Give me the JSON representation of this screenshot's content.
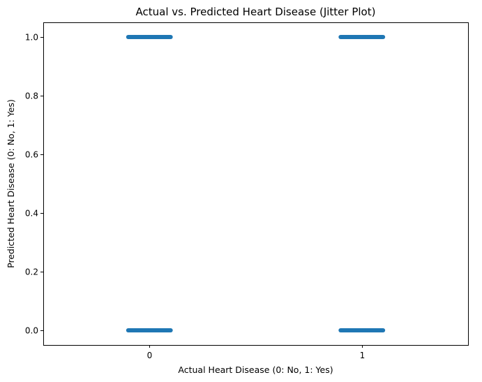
{
  "chart_data": {
    "type": "scatter",
    "title": "Actual vs. Predicted Heart Disease (Jitter Plot)",
    "xlabel": "Actual Heart Disease (0: No, 1: Yes)",
    "ylabel": "Predicted Heart Disease (0: No, 1: Yes)",
    "xlim": [
      -0.5,
      1.5
    ],
    "ylim": [
      -0.05,
      1.05
    ],
    "x_ticks": [
      0,
      1
    ],
    "x_tick_labels": [
      "0",
      "1"
    ],
    "y_ticks": [
      0.0,
      0.2,
      0.4,
      0.6,
      0.8,
      1.0
    ],
    "y_tick_labels": [
      "0.0",
      "0.2",
      "0.4",
      "0.6",
      "0.8",
      "1.0"
    ],
    "grid": false,
    "jitter_range": 0.1,
    "series": [
      {
        "color": "#1f77b4",
        "groups": [
          {
            "x": 0,
            "y": 0
          },
          {
            "x": 0,
            "y": 1
          },
          {
            "x": 1,
            "y": 0
          },
          {
            "x": 1,
            "y": 1
          }
        ]
      }
    ]
  }
}
